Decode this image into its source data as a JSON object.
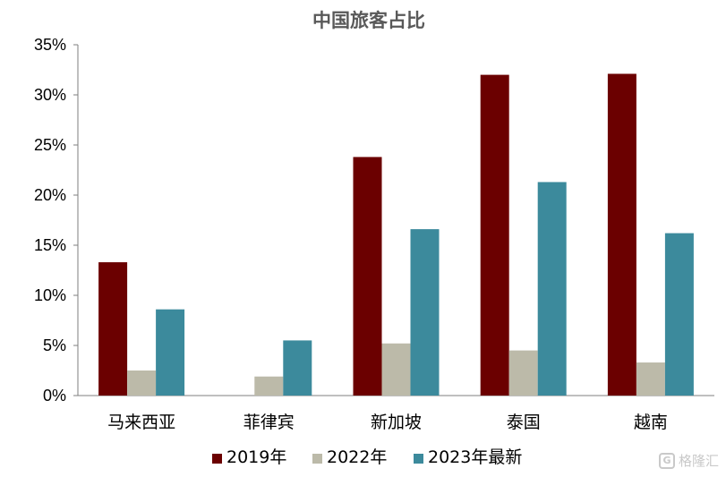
{
  "chart_data": {
    "type": "bar",
    "title": "中国旅客占比",
    "categories": [
      "马来西亚",
      "菲律宾",
      "新加坡",
      "泰国",
      "越南"
    ],
    "series": [
      {
        "name": "2019年",
        "color": "#6b0000",
        "values": [
          13.3,
          null,
          23.8,
          32.0,
          32.1
        ]
      },
      {
        "name": "2022年",
        "color": "#bcbaa9",
        "values": [
          2.5,
          1.9,
          5.2,
          4.5,
          3.3
        ]
      },
      {
        "name": "2023年最新",
        "color": "#3c8a9c",
        "values": [
          8.6,
          5.5,
          16.6,
          21.3,
          16.2
        ]
      }
    ],
    "ylim": [
      0,
      35
    ],
    "yticks": [
      0,
      5,
      10,
      15,
      20,
      25,
      30,
      35
    ],
    "ytick_labels": [
      "0%",
      "5%",
      "10%",
      "15%",
      "20%",
      "25%",
      "30%",
      "35%"
    ],
    "xlabel": "",
    "ylabel": "",
    "grid": false,
    "legend_position": "bottom"
  },
  "watermark": {
    "text": "格隆汇",
    "icon": "G-logo-icon",
    "icon_letter": "G"
  }
}
